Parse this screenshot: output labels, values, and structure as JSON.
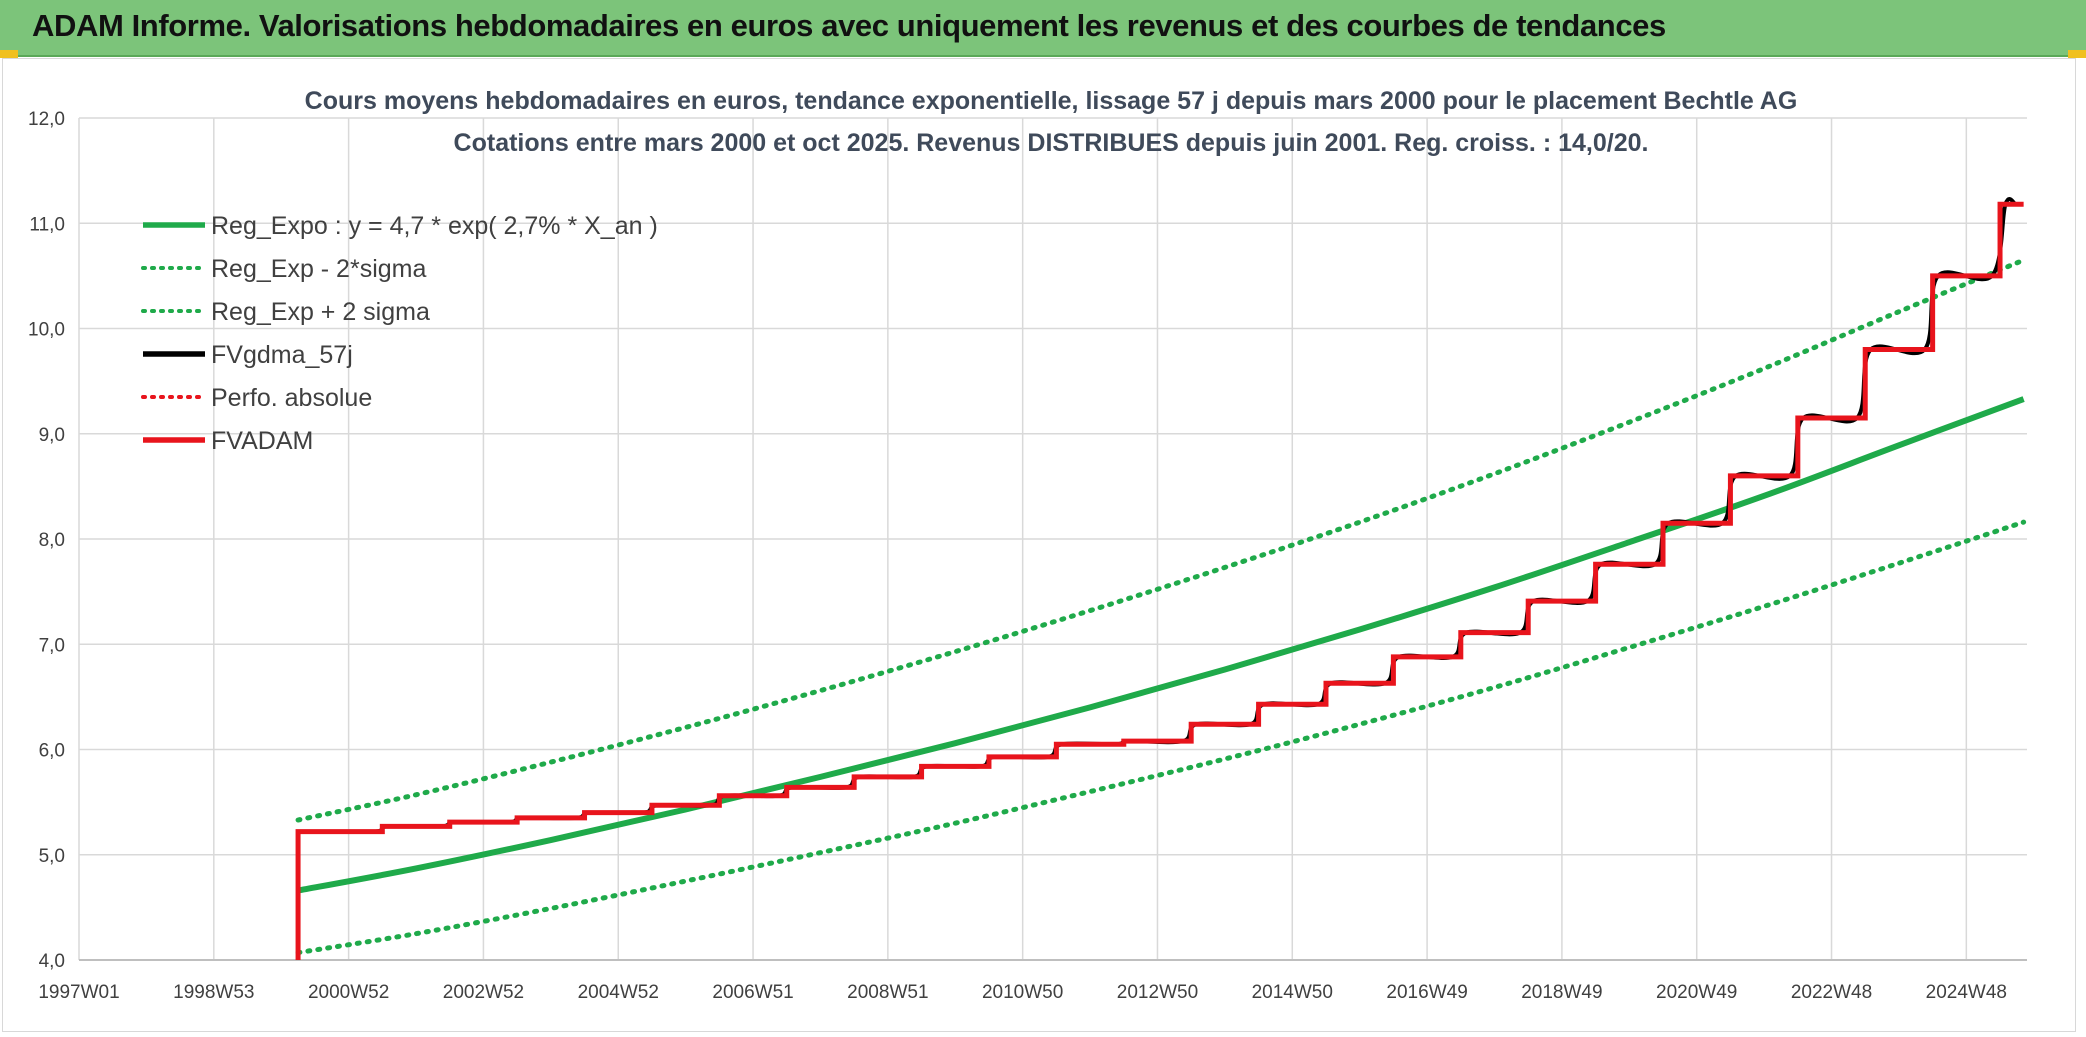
{
  "banner": {
    "title": "ADAM Informe. Valorisations hebdomadaires en euros avec uniquement les revenus et des courbes de tendances"
  },
  "colors": {
    "banner_bg": "#7cc47a",
    "reg_green": "#1faa4a",
    "fv_black": "#000000",
    "adam_red": "#e8141c",
    "grid": "#d9d9d9",
    "text": "#404040"
  },
  "chart_data": {
    "type": "line",
    "title": "Cours moyens hebdomadaires en euros, tendance exponentielle, lissage 57 j depuis mars 2000 pour le placement Bechtle AG",
    "subtitle": "Cotations entre mars 2000 et oct 2025. Revenus DISTRIBUES depuis juin 2001. Reg. croiss. : 14,0/20.",
    "xlabel": "",
    "ylabel": "",
    "ylim": [
      4.0,
      12.0
    ],
    "xlim": [
      1997.0,
      2025.9
    ],
    "y_ticks": [
      "4,0",
      "5,0",
      "6,0",
      "7,0",
      "8,0",
      "9,0",
      "10,0",
      "11,0",
      "12,0"
    ],
    "x_tick_labels": [
      "1997W01",
      "1998W53",
      "2000W52",
      "2002W52",
      "2004W52",
      "2006W51",
      "2008W51",
      "2010W50",
      "2012W50",
      "2014W50",
      "2016W49",
      "2018W49",
      "2020W49",
      "2022W48",
      "2024W48"
    ],
    "x_tick_years": [
      1997.0,
      1999.0,
      2001.0,
      2003.0,
      2005.0,
      2007.0,
      2009.0,
      2011.0,
      2013.0,
      2015.0,
      2017.0,
      2019.0,
      2021.0,
      2023.0,
      2025.0
    ],
    "grid": true,
    "legend_position": "top-left",
    "series": [
      {
        "name": "Reg_Expo : y = 4,7 * exp( 2,7% *  X_an )",
        "style": "solid-thick",
        "color": "#1faa4a",
        "x": [
          2000.25,
          2002,
          2004,
          2006,
          2008,
          2010,
          2012,
          2014,
          2016,
          2018,
          2020,
          2022,
          2024,
          2025.85
        ],
        "values": [
          4.66,
          4.87,
          5.14,
          5.43,
          5.74,
          6.06,
          6.4,
          6.76,
          7.14,
          7.54,
          7.97,
          8.41,
          8.89,
          9.33
        ]
      },
      {
        "name": "Reg_Exp - 2*sigma",
        "style": "dotted",
        "color": "#1faa4a",
        "x": [
          2000.25,
          2002,
          2004,
          2006,
          2008,
          2010,
          2012,
          2014,
          2016,
          2018,
          2020,
          2022,
          2024,
          2025.85
        ],
        "values": [
          4.07,
          4.25,
          4.49,
          4.75,
          5.02,
          5.3,
          5.6,
          5.91,
          6.24,
          6.59,
          6.97,
          7.36,
          7.77,
          8.16
        ]
      },
      {
        "name": "Reg_Exp + 2 sigma",
        "style": "dotted",
        "color": "#1faa4a",
        "x": [
          2000.25,
          2002,
          2004,
          2006,
          2008,
          2010,
          2012,
          2014,
          2016,
          2018,
          2020,
          2022,
          2024,
          2025.85
        ],
        "values": [
          5.33,
          5.57,
          5.88,
          6.21,
          6.56,
          6.93,
          7.32,
          7.73,
          8.16,
          8.62,
          9.11,
          9.62,
          10.16,
          10.65
        ]
      },
      {
        "name": "FVgdma_57j",
        "style": "solid-smooth",
        "color": "#000000",
        "x": [
          2000.25,
          2001.5,
          2002.5,
          2004.0,
          2005.5,
          2007.0,
          2008.5,
          2009.5,
          2010.5,
          2011.5,
          2013.0,
          2014.0,
          2015.0,
          2016.0,
          2017.0,
          2018.0,
          2019.0,
          2020.0,
          2021.0,
          2022.0,
          2023.0,
          2024.0,
          2025.0,
          2025.85
        ],
        "values": [
          5.22,
          5.27,
          5.31,
          5.39,
          5.47,
          5.56,
          5.72,
          5.83,
          5.92,
          6.05,
          6.09,
          6.25,
          6.43,
          6.63,
          6.88,
          7.11,
          7.41,
          7.76,
          8.15,
          8.6,
          9.15,
          9.8,
          10.5,
          11.18
        ]
      },
      {
        "name": "Perfo. absolue",
        "style": "dotted",
        "color": "#e8141c",
        "x": [],
        "values": []
      },
      {
        "name": "FVADAM",
        "style": "step-thick",
        "color": "#e8141c",
        "x": [
          2000.25,
          2001.5,
          2002.5,
          2003.5,
          2004.5,
          2005.5,
          2006.5,
          2007.5,
          2008.5,
          2009.5,
          2010.5,
          2011.5,
          2012.5,
          2013.5,
          2014.5,
          2015.5,
          2016.5,
          2017.5,
          2018.5,
          2019.5,
          2020.5,
          2021.5,
          2022.5,
          2023.5,
          2024.5,
          2025.5
        ],
        "values": [
          5.22,
          5.27,
          5.31,
          5.35,
          5.4,
          5.47,
          5.56,
          5.64,
          5.74,
          5.84,
          5.93,
          6.05,
          6.08,
          6.24,
          6.43,
          6.63,
          6.88,
          7.11,
          7.41,
          7.76,
          8.15,
          8.6,
          9.15,
          9.8,
          10.5,
          11.18
        ],
        "start_from": 4.0,
        "end_x": 2025.85
      }
    ]
  }
}
